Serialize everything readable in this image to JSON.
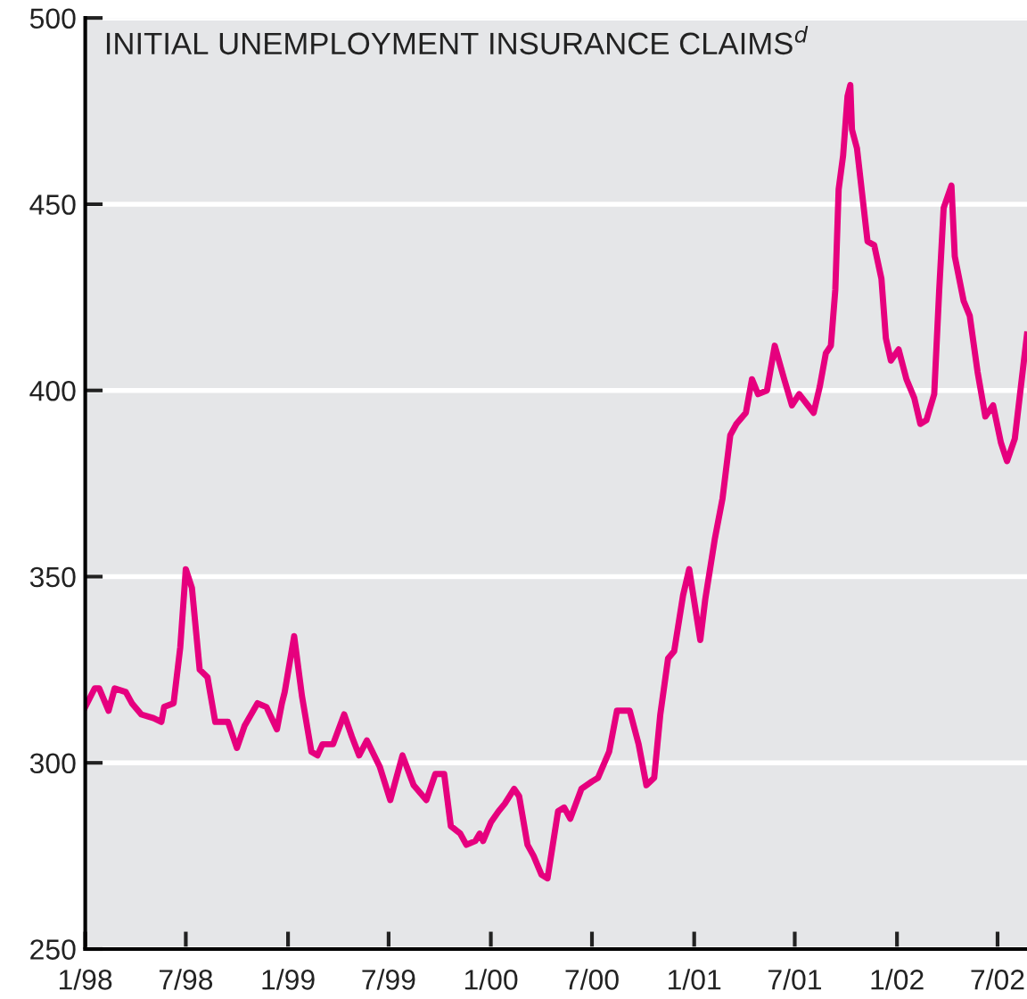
{
  "chart_data": {
    "type": "line",
    "title": "INITIAL UNEMPLOYMENT INSURANCE CLAIMS$^{d}$",
    "x": [
      "1998-01-01",
      "1998-01-18",
      "1998-01-26",
      "1998-02-12",
      "1998-02-23",
      "1998-03-15",
      "1998-03-26",
      "1998-04-12",
      "1998-05-04",
      "1998-05-18",
      "1998-05-23",
      "1998-06-09",
      "1998-06-21",
      "1998-07-01",
      "1998-07-12",
      "1998-07-26",
      "1998-08-09",
      "1998-08-23",
      "1998-09-15",
      "1998-10-01",
      "1998-10-15",
      "1998-11-07",
      "1998-11-23",
      "1998-12-12",
      "1998-12-21",
      "1998-12-26",
      "1999-01-12",
      "1999-01-26",
      "1999-02-12",
      "1999-02-23",
      "1999-03-04",
      "1999-03-23",
      "1999-04-12",
      "1999-04-26",
      "1999-05-09",
      "1999-05-23",
      "1999-06-15",
      "1999-07-04",
      "1999-07-26",
      "1999-08-15",
      "1999-09-07",
      "1999-09-23",
      "1999-10-09",
      "1999-10-21",
      "1999-11-07",
      "1999-11-18",
      "1999-12-04",
      "1999-12-12",
      "1999-12-18",
      "2000-01-01",
      "2000-01-15",
      "2000-01-26",
      "2000-02-12",
      "2000-02-21",
      "2000-03-07",
      "2000-03-18",
      "2000-04-01",
      "2000-04-12",
      "2000-05-01",
      "2000-05-12",
      "2000-05-23",
      "2000-06-12",
      "2000-07-01",
      "2000-07-12",
      "2000-08-01",
      "2000-08-15",
      "2000-09-07",
      "2000-09-23",
      "2000-10-07",
      "2000-10-21",
      "2000-11-01",
      "2000-11-15",
      "2000-11-26",
      "2000-12-12",
      "2000-12-23",
      "2001-01-12",
      "2001-01-21",
      "2001-02-07",
      "2001-02-21",
      "2001-03-07",
      "2001-03-18",
      "2001-04-04",
      "2001-04-15",
      "2001-04-26",
      "2001-05-12",
      "2001-05-26",
      "2001-06-12",
      "2001-06-26",
      "2001-07-09",
      "2001-08-04",
      "2001-08-15",
      "2001-08-26",
      "2001-09-04",
      "2001-09-12",
      "2001-09-18",
      "2001-09-26",
      "2001-10-04",
      "2001-10-09",
      "2001-10-12",
      "2001-10-21",
      "2001-11-09",
      "2001-11-21",
      "2001-12-04",
      "2001-12-12",
      "2001-12-21",
      "2002-01-04",
      "2002-01-18",
      "2002-02-01",
      "2002-02-12",
      "2002-02-23",
      "2002-03-09",
      "2002-03-18",
      "2002-03-26",
      "2002-04-09",
      "2002-04-15",
      "2002-05-01",
      "2002-05-12",
      "2002-05-26",
      "2002-06-09",
      "2002-06-23",
      "2002-07-07",
      "2002-07-18",
      "2002-08-01",
      "2002-08-12",
      "2002-08-23"
    ],
    "series": [
      {
        "color": "#e6007e",
        "values": [
          315,
          320,
          320,
          314,
          320,
          319,
          316,
          313,
          312,
          311,
          315,
          316,
          331,
          352,
          347,
          325,
          323,
          311,
          311,
          304,
          310,
          316,
          315,
          309,
          316,
          319,
          334,
          318,
          303,
          302,
          305,
          305,
          313,
          307,
          302,
          306,
          299,
          290,
          302,
          294,
          290,
          297,
          297,
          283,
          281,
          278,
          279,
          281,
          279,
          284,
          287,
          289,
          293,
          291,
          278,
          275,
          270,
          269,
          287,
          288,
          285,
          293,
          295,
          296,
          303,
          314,
          314,
          305,
          294,
          296,
          313,
          328,
          330,
          345,
          352,
          333,
          344,
          360,
          371,
          388,
          391,
          394,
          403,
          399,
          400,
          412,
          403,
          396,
          399,
          394,
          401,
          410,
          412,
          427,
          454,
          463,
          479,
          482,
          470,
          465,
          440,
          439,
          430,
          414,
          408,
          411,
          403,
          398,
          391,
          392,
          399,
          427,
          449,
          455,
          436,
          424,
          420,
          405,
          393,
          396,
          386,
          381,
          387,
          401,
          415
        ]
      }
    ],
    "xlim": [
      "1998-01-01",
      "2002-08-23"
    ],
    "ylim": [
      250,
      500
    ],
    "xticks": [
      {
        "value": "1998-01-01",
        "label": "1/98"
      },
      {
        "value": "1998-07-01",
        "label": "7/98"
      },
      {
        "value": "1999-01-01",
        "label": "1/99"
      },
      {
        "value": "1999-07-01",
        "label": "7/99"
      },
      {
        "value": "2000-01-01",
        "label": "1/00"
      },
      {
        "value": "2000-07-01",
        "label": "7/00"
      },
      {
        "value": "2001-01-01",
        "label": "1/01"
      },
      {
        "value": "2001-07-01",
        "label": "7/01"
      },
      {
        "value": "2002-01-01",
        "label": "1/02"
      },
      {
        "value": "2002-07-01",
        "label": "7/02"
      }
    ],
    "yticks": [
      250,
      300,
      350,
      400,
      450,
      500
    ],
    "grid": "y",
    "legend": false,
    "marker": "none",
    "line_style": "solid"
  }
}
